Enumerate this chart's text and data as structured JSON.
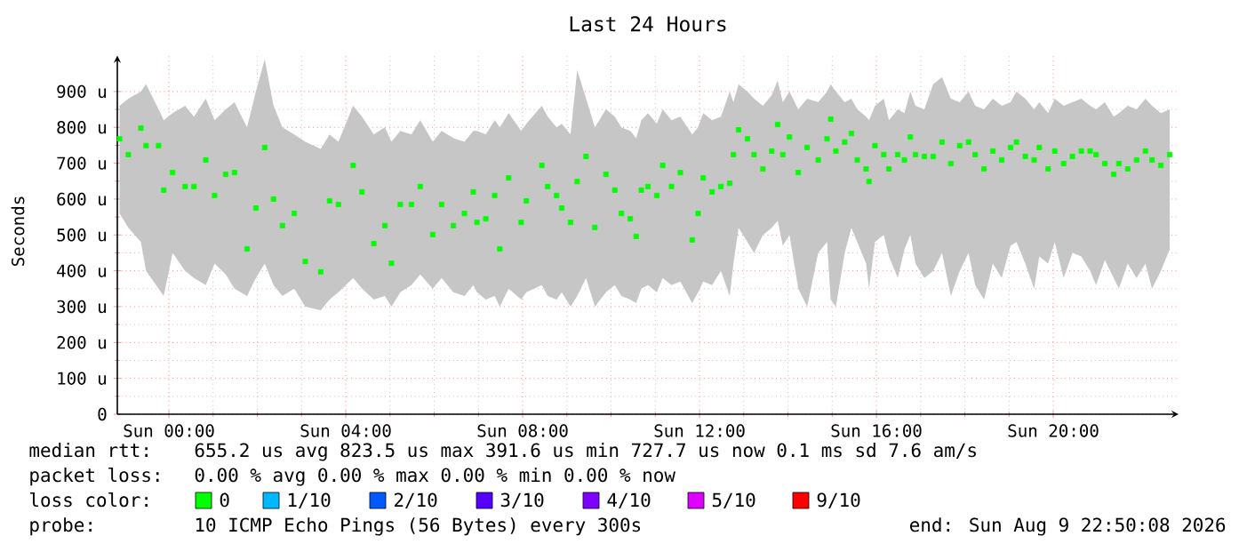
{
  "chart_data": {
    "type": "scatter",
    "title": "Last 24 Hours",
    "ylabel": "Seconds",
    "xlim": [
      "2026-08-08T22:50",
      "2026-08-09T22:50"
    ],
    "ylim": [
      0,
      1000
    ],
    "xticks": [
      {
        "value": "2026-08-09T00:00",
        "label": "Sun 00:00"
      },
      {
        "value": "2026-08-09T04:00",
        "label": "Sun 04:00"
      },
      {
        "value": "2026-08-09T08:00",
        "label": "Sun 08:00"
      },
      {
        "value": "2026-08-09T12:00",
        "label": "Sun 12:00"
      },
      {
        "value": "2026-08-09T16:00",
        "label": "Sun 16:00"
      },
      {
        "value": "2026-08-09T20:00",
        "label": "Sun 20:00"
      }
    ],
    "yticks": [
      0,
      {
        "value": 100,
        "label": "100 u"
      },
      {
        "value": 200,
        "label": "200 u"
      },
      {
        "value": 300,
        "label": "300 u"
      },
      {
        "value": 400,
        "label": "400 u"
      },
      {
        "value": 500,
        "label": "500 u"
      },
      {
        "value": 600,
        "label": "600 u"
      },
      {
        "value": 700,
        "label": "700 u"
      },
      {
        "value": 800,
        "label": "800 u"
      },
      {
        "value": 900,
        "label": "900 u"
      }
    ],
    "grid": true,
    "marker": "square",
    "series": [
      {
        "color": "#00ff00",
        "x": [
          "2026-08-08T22:53",
          "2026-08-08T23:05",
          "2026-08-08T23:22",
          "2026-08-08T23:29",
          "2026-08-08T23:46",
          "2026-08-08T23:53",
          "2026-08-09T00:05",
          "2026-08-09T00:22",
          "2026-08-09T00:34",
          "2026-08-09T00:50",
          "2026-08-09T01:02",
          "2026-08-09T01:17",
          "2026-08-09T01:29",
          "2026-08-09T01:46",
          "2026-08-09T01:58",
          "2026-08-09T02:10",
          "2026-08-09T02:22",
          "2026-08-09T02:34",
          "2026-08-09T02:50",
          "2026-08-09T03:05",
          "2026-08-09T03:26",
          "2026-08-09T03:38",
          "2026-08-09T03:50",
          "2026-08-09T04:10",
          "2026-08-09T04:22",
          "2026-08-09T04:38",
          "2026-08-09T04:53",
          "2026-08-09T05:02",
          "2026-08-09T05:14",
          "2026-08-09T05:29",
          "2026-08-09T05:41",
          "2026-08-09T05:58",
          "2026-08-09T06:10",
          "2026-08-09T06:26",
          "2026-08-09T06:41",
          "2026-08-09T06:53",
          "2026-08-09T06:58",
          "2026-08-09T07:10",
          "2026-08-09T07:22",
          "2026-08-09T07:29",
          "2026-08-09T07:41",
          "2026-08-09T07:58",
          "2026-08-09T08:05",
          "2026-08-09T08:26",
          "2026-08-09T08:34",
          "2026-08-09T08:46",
          "2026-08-09T08:53",
          "2026-08-09T09:05",
          "2026-08-09T09:14",
          "2026-08-09T09:26",
          "2026-08-09T09:38",
          "2026-08-09T09:53",
          "2026-08-09T10:05",
          "2026-08-09T10:14",
          "2026-08-09T10:26",
          "2026-08-09T10:34",
          "2026-08-09T10:41",
          "2026-08-09T10:50",
          "2026-08-09T11:02",
          "2026-08-09T11:10",
          "2026-08-09T11:22",
          "2026-08-09T11:34",
          "2026-08-09T11:50",
          "2026-08-09T11:58",
          "2026-08-09T12:05",
          "2026-08-09T12:17",
          "2026-08-09T12:29",
          "2026-08-09T12:41",
          "2026-08-09T12:46",
          "2026-08-09T12:53",
          "2026-08-09T13:05",
          "2026-08-09T13:14",
          "2026-08-09T13:26",
          "2026-08-09T13:38",
          "2026-08-09T13:46",
          "2026-08-09T13:53",
          "2026-08-09T14:02",
          "2026-08-09T14:14",
          "2026-08-09T14:26",
          "2026-08-09T14:41",
          "2026-08-09T14:53",
          "2026-08-09T14:58",
          "2026-08-09T15:05",
          "2026-08-09T15:17",
          "2026-08-09T15:26",
          "2026-08-09T15:34",
          "2026-08-09T15:46",
          "2026-08-09T15:50",
          "2026-08-09T15:58",
          "2026-08-09T16:10",
          "2026-08-09T16:17",
          "2026-08-09T16:29",
          "2026-08-09T16:38",
          "2026-08-09T16:46",
          "2026-08-09T16:53",
          "2026-08-09T17:05",
          "2026-08-09T17:17",
          "2026-08-09T17:29",
          "2026-08-09T17:41",
          "2026-08-09T17:53",
          "2026-08-09T18:05",
          "2026-08-09T18:14",
          "2026-08-09T18:26",
          "2026-08-09T18:38",
          "2026-08-09T18:50",
          "2026-08-09T19:02",
          "2026-08-09T19:10",
          "2026-08-09T19:22",
          "2026-08-09T19:34",
          "2026-08-09T19:41",
          "2026-08-09T19:53",
          "2026-08-09T20:02",
          "2026-08-09T20:14",
          "2026-08-09T20:26",
          "2026-08-09T20:38",
          "2026-08-09T20:50",
          "2026-08-09T20:58",
          "2026-08-09T21:10",
          "2026-08-09T21:22",
          "2026-08-09T21:29",
          "2026-08-09T21:41",
          "2026-08-09T21:53",
          "2026-08-09T22:05",
          "2026-08-09T22:14",
          "2026-08-09T22:26",
          "2026-08-09T22:38"
        ],
        "values": [
          768,
          724,
          798,
          749,
          749,
          625,
          674,
          635,
          635,
          709,
          610,
          669,
          674,
          461,
          575,
          744,
          600,
          526,
          560,
          426,
          397,
          595,
          585,
          694,
          620,
          476,
          526,
          421,
          585,
          585,
          635,
          501,
          585,
          526,
          560,
          620,
          535,
          545,
          610,
          461,
          659,
          535,
          595,
          694,
          635,
          610,
          575,
          535,
          649,
          719,
          521,
          669,
          625,
          560,
          545,
          496,
          625,
          635,
          610,
          694,
          635,
          674,
          486,
          560,
          659,
          620,
          635,
          644,
          724,
          793,
          768,
          724,
          684,
          734,
          808,
          724,
          773,
          674,
          744,
          709,
          768,
          823,
          734,
          759,
          783,
          709,
          684,
          649,
          749,
          724,
          684,
          724,
          709,
          773,
          724,
          719,
          719,
          759,
          699,
          749,
          759,
          724,
          684,
          734,
          709,
          744,
          759,
          719,
          709,
          744,
          684,
          734,
          699,
          719,
          734,
          734,
          724,
          699,
          669,
          699,
          684,
          709,
          734,
          709,
          694,
          724
        ],
        "lower": [
          560,
          520,
          480,
          400,
          350,
          330,
          450,
          400,
          380,
          360,
          420,
          390,
          350,
          330,
          380,
          420,
          360,
          330,
          350,
          300,
          290,
          320,
          340,
          380,
          350,
          320,
          330,
          300,
          340,
          360,
          390,
          350,
          380,
          340,
          330,
          360,
          340,
          320,
          330,
          300,
          350,
          320,
          340,
          360,
          330,
          320,
          340,
          300,
          330,
          380,
          300,
          340,
          360,
          330,
          320,
          310,
          350,
          360,
          340,
          380,
          360,
          370,
          310,
          340,
          370,
          360,
          400,
          330,
          420,
          520,
          480,
          450,
          500,
          520,
          540,
          470,
          500,
          350,
          300,
          450,
          480,
          320,
          300,
          450,
          520,
          480,
          420,
          350,
          480,
          500,
          440,
          380,
          460,
          500,
          420,
          380,
          400,
          450,
          330,
          400,
          450,
          360,
          320,
          420,
          380,
          470,
          480,
          420,
          350,
          440,
          420,
          480,
          380,
          450,
          440,
          400,
          360,
          430,
          380,
          350,
          420,
          380,
          420,
          350,
          400,
          460
        ],
        "upper": [
          860,
          880,
          900,
          920,
          850,
          820,
          840,
          860,
          830,
          880,
          820,
          850,
          870,
          800,
          900,
          990,
          860,
          800,
          780,
          760,
          740,
          780,
          760,
          860,
          830,
          780,
          800,
          760,
          790,
          780,
          820,
          760,
          790,
          770,
          760,
          790,
          790,
          780,
          820,
          800,
          840,
          790,
          810,
          860,
          830,
          800,
          810,
          780,
          960,
          880,
          800,
          850,
          830,
          800,
          790,
          770,
          820,
          840,
          810,
          850,
          820,
          830,
          780,
          800,
          840,
          820,
          830,
          900,
          870,
          920,
          900,
          880,
          860,
          890,
          930,
          870,
          900,
          850,
          880,
          870,
          900,
          920,
          900,
          870,
          880,
          850,
          830,
          820,
          860,
          880,
          820,
          850,
          840,
          900,
          860,
          850,
          920,
          940,
          880,
          870,
          900,
          860,
          850,
          880,
          860,
          870,
          900,
          880,
          850,
          870,
          840,
          880,
          860,
          870,
          880,
          860,
          850,
          870,
          830,
          840,
          860,
          850,
          880,
          860,
          840,
          850
        ]
      }
    ],
    "annotations": [
      "median rtt:",
      "655.2 us avg   823.5 us max   391.6 us min   727.7 us now   0.1 ms sd   7.6   am/s",
      "packet loss:",
      "0.00 % avg   0.00 % max   0.00 % min   0.00 % now",
      "loss color:",
      "0",
      "1/10",
      "2/10",
      "3/10",
      "4/10",
      "5/10",
      "9/10",
      "probe:",
      "10 ICMP Echo Pings (56 Bytes) every 300s",
      "end: Sun Aug  9 22:50:08 2026"
    ]
  }
}
